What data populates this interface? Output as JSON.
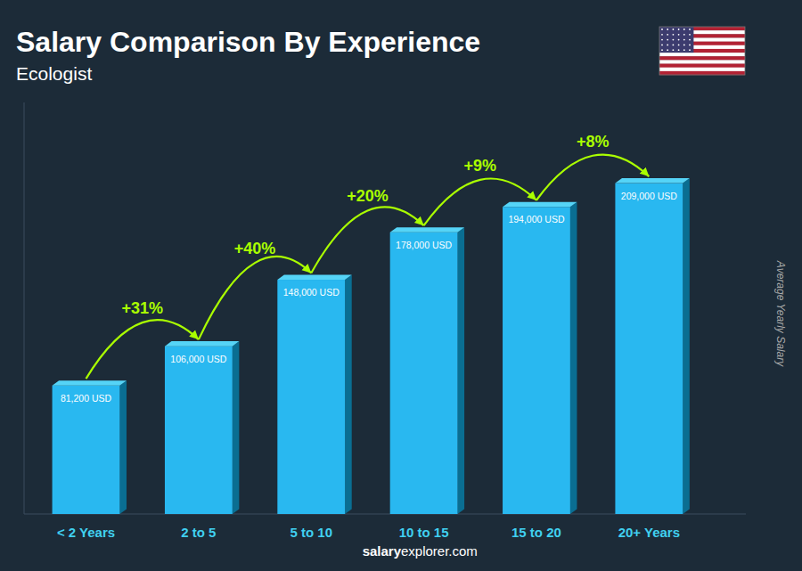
{
  "chart_data": {
    "type": "bar",
    "title": "Salary Comparison By Experience",
    "subtitle": "Ecologist",
    "categories": [
      "< 2 Years",
      "2 to 5",
      "5 to 10",
      "10 to 15",
      "15 to 20",
      "20+ Years"
    ],
    "values": [
      81200,
      106000,
      148000,
      178000,
      194000,
      209000
    ],
    "value_labels": [
      "81,200 USD",
      "106,000 USD",
      "148,000 USD",
      "178,000 USD",
      "194,000 USD",
      "209,000 USD"
    ],
    "data_labels": true,
    "color": "#29b8f0",
    "ylim": [
      0,
      260000
    ],
    "ylabel": "Average Yearly Salary",
    "annotations": [
      "+31%",
      "+40%",
      "+20%",
      "+9%",
      "+8%"
    ],
    "footer": [
      "salary",
      "explorer.com"
    ],
    "grid": false,
    "tick_labels": "x"
  }
}
